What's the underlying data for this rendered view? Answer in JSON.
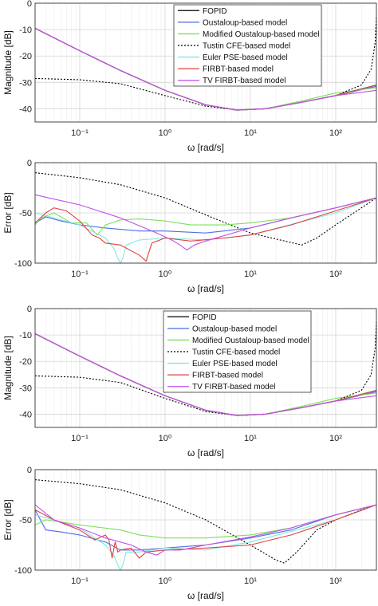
{
  "series_styles": [
    {
      "key": "fopid",
      "name": "FOPID",
      "color": "#000000",
      "dash": ""
    },
    {
      "key": "oust",
      "name": "Oustaloup-based model",
      "color": "#4d6fe0",
      "dash": ""
    },
    {
      "key": "modoust",
      "name": "Modified Oustaloup-based model",
      "color": "#7ee05a",
      "dash": ""
    },
    {
      "key": "tustin",
      "name": "Tustin CFE-based model",
      "color": "#000000",
      "dash": "2,2"
    },
    {
      "key": "euler",
      "name": "Euler PSE-based model",
      "color": "#7fe8e0",
      "dash": ""
    },
    {
      "key": "firbt",
      "name": "FIRBT-based model",
      "color": "#e04040",
      "dash": ""
    },
    {
      "key": "tvfirbt",
      "name": "TV FIRBT-based model",
      "color": "#c050e8",
      "dash": ""
    }
  ],
  "chart_data": [
    {
      "type": "line",
      "xscale": "log",
      "xlim": [
        0.03,
        300
      ],
      "ylim": [
        -45,
        0
      ],
      "yticks": [
        0,
        -10,
        -20,
        -30,
        -40
      ],
      "xticks": [
        0.1,
        1,
        10,
        100
      ],
      "xtick_labels": [
        "10⁻¹",
        "10⁰",
        "10¹",
        "10²"
      ],
      "xlabel": "ω [rad/s]",
      "ylabel": "Magnitude [dB]",
      "grid": true,
      "legend": "top-right",
      "series": [
        {
          "key": "fopid",
          "x": [
            0.03,
            0.1,
            0.3,
            1,
            3,
            7,
            15,
            40,
            100,
            300
          ],
          "y": [
            -9.5,
            -18,
            -25.5,
            -33,
            -38.5,
            -40.5,
            -40,
            -37.5,
            -35,
            -31
          ]
        },
        {
          "key": "oust",
          "x": [
            0.03,
            0.1,
            0.3,
            1,
            3,
            7,
            15,
            40,
            100,
            300
          ],
          "y": [
            -9.5,
            -18,
            -25.5,
            -33,
            -38.5,
            -40.5,
            -40,
            -37.5,
            -35,
            -31.5
          ]
        },
        {
          "key": "modoust",
          "x": [
            0.03,
            0.1,
            0.3,
            1,
            3,
            7,
            15,
            40,
            100,
            300
          ],
          "y": [
            -9.5,
            -18,
            -25.5,
            -33,
            -38.5,
            -40.5,
            -40,
            -37,
            -34,
            -32
          ]
        },
        {
          "key": "tustin",
          "x": [
            0.03,
            0.1,
            0.3,
            1,
            3,
            7,
            15,
            40,
            100,
            200,
            260,
            290,
            300
          ],
          "y": [
            -28.5,
            -29,
            -30.5,
            -35,
            -39,
            -40.5,
            -40,
            -37.5,
            -35,
            -31,
            -25,
            -15,
            -5
          ]
        },
        {
          "key": "euler",
          "x": [
            0.03,
            0.1,
            0.3,
            1,
            3,
            7,
            15,
            40,
            100,
            300
          ],
          "y": [
            -9.5,
            -18,
            -25.5,
            -33,
            -38.5,
            -40.5,
            -40,
            -37.5,
            -35,
            -31
          ]
        },
        {
          "key": "firbt",
          "x": [
            0.03,
            0.1,
            0.3,
            1,
            3,
            7,
            15,
            40,
            100,
            300
          ],
          "y": [
            -9.5,
            -18,
            -25.5,
            -33,
            -38.5,
            -40.5,
            -40,
            -37.5,
            -35,
            -31
          ]
        },
        {
          "key": "tvfirbt",
          "x": [
            0.03,
            0.1,
            0.3,
            1,
            3,
            7,
            15,
            40,
            100,
            300
          ],
          "y": [
            -9.5,
            -18,
            -25.5,
            -33,
            -38.5,
            -40.5,
            -40,
            -37.5,
            -35,
            -33
          ]
        }
      ]
    },
    {
      "type": "line",
      "xscale": "log",
      "xlim": [
        0.03,
        300
      ],
      "ylim": [
        -100,
        0
      ],
      "yticks": [
        0,
        -50,
        -100
      ],
      "xticks": [
        0.1,
        1,
        10,
        100
      ],
      "xtick_labels": [
        "10⁻¹",
        "10⁰",
        "10¹",
        "10²"
      ],
      "xlabel": "ω [rad/s]",
      "ylabel": "Error [dB]",
      "grid": true,
      "legend": "none",
      "series": [
        {
          "key": "tustin",
          "x": [
            0.03,
            0.1,
            0.3,
            1,
            3,
            10,
            40,
            60,
            100,
            200,
            300
          ],
          "y": [
            -10,
            -15,
            -22,
            -35,
            -52,
            -70,
            -82,
            -75,
            -62,
            -45,
            -35
          ]
        },
        {
          "key": "oust",
          "x": [
            0.03,
            0.04,
            0.06,
            0.1,
            0.2,
            0.5,
            1,
            3,
            10,
            30,
            100,
            300
          ],
          "y": [
            -60,
            -54,
            -58,
            -62,
            -65,
            -68,
            -68,
            -70,
            -65,
            -55,
            -45,
            -35
          ]
        },
        {
          "key": "modoust",
          "x": [
            0.03,
            0.035,
            0.05,
            0.08,
            0.12,
            0.16,
            0.2,
            0.3,
            0.5,
            1,
            2,
            5,
            10,
            30,
            100,
            300
          ],
          "y": [
            -62,
            -55,
            -50,
            -60,
            -60,
            -72,
            -62,
            -57,
            -56,
            -58,
            -62,
            -62,
            -60,
            -55,
            -45,
            -35
          ]
        },
        {
          "key": "euler",
          "x": [
            0.03,
            0.05,
            0.1,
            0.2,
            0.25,
            0.28,
            0.3,
            0.32,
            0.35,
            0.5,
            1,
            3,
            10,
            100,
            300
          ],
          "y": [
            -50,
            -55,
            -62,
            -75,
            -85,
            -95,
            -100,
            -95,
            -82,
            -77,
            -75,
            -77,
            -72,
            -50,
            -35
          ]
        },
        {
          "key": "firbt",
          "x": [
            0.03,
            0.04,
            0.05,
            0.07,
            0.1,
            0.14,
            0.17,
            0.2,
            0.3,
            0.5,
            0.6,
            0.7,
            1,
            2,
            5,
            10,
            30,
            100,
            300
          ],
          "y": [
            -60,
            -50,
            -45,
            -48,
            -58,
            -72,
            -75,
            -80,
            -82,
            -92,
            -98,
            -80,
            -75,
            -78,
            -75,
            -72,
            -62,
            -48,
            -35
          ]
        },
        {
          "key": "tvfirbt",
          "x": [
            0.03,
            0.1,
            0.3,
            0.8,
            1.2,
            1.5,
            1.8,
            2.2,
            3,
            10,
            30,
            100,
            300
          ],
          "y": [
            -32,
            -42,
            -55,
            -70,
            -77,
            -82,
            -87,
            -82,
            -78,
            -65,
            -55,
            -45,
            -35
          ]
        }
      ]
    },
    {
      "type": "line",
      "xscale": "log",
      "xlim": [
        0.03,
        300
      ],
      "ylim": [
        -45,
        0
      ],
      "yticks": [
        0,
        -10,
        -20,
        -30,
        -40
      ],
      "xticks": [
        0.1,
        1,
        10,
        100
      ],
      "xtick_labels": [
        "10⁻¹",
        "10⁰",
        "10¹",
        "10²"
      ],
      "xlabel": "ω [rad/s]",
      "ylabel": "Magnitude [dB]",
      "grid": true,
      "legend": "top-center",
      "series": [
        {
          "key": "fopid",
          "x": [
            0.03,
            0.1,
            0.3,
            1,
            3,
            7,
            15,
            40,
            100,
            300
          ],
          "y": [
            -9.5,
            -18,
            -25.5,
            -33,
            -38.5,
            -40.5,
            -40,
            -37.5,
            -35,
            -31
          ]
        },
        {
          "key": "oust",
          "x": [
            0.03,
            0.1,
            0.3,
            1,
            3,
            7,
            15,
            40,
            100,
            300
          ],
          "y": [
            -9.5,
            -18,
            -25.5,
            -33,
            -38.5,
            -40.5,
            -40,
            -37.5,
            -35,
            -31.5
          ]
        },
        {
          "key": "modoust",
          "x": [
            0.03,
            0.1,
            0.3,
            1,
            3,
            7,
            15,
            40,
            100,
            300
          ],
          "y": [
            -9.5,
            -18,
            -25.5,
            -33,
            -38.5,
            -40.5,
            -40,
            -37,
            -34,
            -32
          ]
        },
        {
          "key": "tustin",
          "x": [
            0.03,
            0.1,
            0.3,
            1,
            3,
            7,
            15,
            40,
            100,
            200,
            260,
            290,
            300
          ],
          "y": [
            -25.5,
            -26,
            -28,
            -34,
            -39,
            -40.5,
            -40,
            -37.5,
            -35,
            -31,
            -25,
            -15,
            -5
          ]
        },
        {
          "key": "euler",
          "x": [
            0.03,
            0.1,
            0.3,
            1,
            3,
            7,
            15,
            40,
            100,
            300
          ],
          "y": [
            -9.5,
            -18,
            -25.5,
            -33,
            -38.5,
            -40.5,
            -40,
            -37.5,
            -35,
            -31
          ]
        },
        {
          "key": "firbt",
          "x": [
            0.03,
            0.1,
            0.3,
            1,
            3,
            7,
            15,
            40,
            100,
            300
          ],
          "y": [
            -9.5,
            -18,
            -25.5,
            -33,
            -38.5,
            -40.5,
            -40,
            -37.5,
            -35,
            -31
          ]
        },
        {
          "key": "tvfirbt",
          "x": [
            0.03,
            0.1,
            0.3,
            1,
            3,
            7,
            15,
            40,
            100,
            300
          ],
          "y": [
            -9.5,
            -18,
            -25.5,
            -33,
            -38.5,
            -40.5,
            -40,
            -37.5,
            -35,
            -33
          ]
        }
      ]
    },
    {
      "type": "line",
      "xscale": "log",
      "xlim": [
        0.03,
        300
      ],
      "ylim": [
        -100,
        0
      ],
      "yticks": [
        0,
        -50,
        -100
      ],
      "xticks": [
        0.1,
        1,
        10,
        100
      ],
      "xtick_labels": [
        "10⁻¹",
        "10⁰",
        "10¹",
        "10²"
      ],
      "xlabel": "ω [rad/s]",
      "ylabel": "Error [dB]",
      "grid": true,
      "legend": "none",
      "series": [
        {
          "key": "tustin",
          "x": [
            0.03,
            0.1,
            0.3,
            1,
            3,
            10,
            20,
            25,
            35,
            60,
            100,
            200,
            300
          ],
          "y": [
            -10,
            -14,
            -20,
            -33,
            -50,
            -75,
            -90,
            -93,
            -82,
            -60,
            -50,
            -40,
            -35
          ]
        },
        {
          "key": "oust",
          "x": [
            0.03,
            0.04,
            0.06,
            0.1,
            0.2,
            0.3,
            0.5,
            1,
            3,
            10,
            30,
            100,
            300
          ],
          "y": [
            -40,
            -60,
            -62,
            -65,
            -72,
            -80,
            -80,
            -78,
            -75,
            -68,
            -60,
            -45,
            -35
          ]
        },
        {
          "key": "modoust",
          "x": [
            0.03,
            0.04,
            0.06,
            0.1,
            0.3,
            0.5,
            1,
            3,
            10,
            30,
            100,
            300
          ],
          "y": [
            -55,
            -50,
            -52,
            -55,
            -60,
            -65,
            -68,
            -68,
            -65,
            -58,
            -45,
            -35
          ]
        },
        {
          "key": "euler",
          "x": [
            0.03,
            0.05,
            0.1,
            0.2,
            0.25,
            0.28,
            0.3,
            0.32,
            0.35,
            0.5,
            1,
            3,
            10,
            100,
            300
          ],
          "y": [
            -45,
            -50,
            -58,
            -75,
            -85,
            -95,
            -100,
            -95,
            -82,
            -82,
            -78,
            -80,
            -72,
            -50,
            -35
          ]
        },
        {
          "key": "firbt",
          "x": [
            0.03,
            0.05,
            0.1,
            0.15,
            0.2,
            0.22,
            0.24,
            0.26,
            0.28,
            0.3,
            0.4,
            0.5,
            0.6,
            1,
            3,
            10,
            30,
            100,
            300
          ],
          "y": [
            -40,
            -50,
            -60,
            -70,
            -65,
            -70,
            -88,
            -72,
            -82,
            -80,
            -78,
            -88,
            -82,
            -80,
            -78,
            -75,
            -65,
            -50,
            -35
          ]
        },
        {
          "key": "tvfirbt",
          "x": [
            0.03,
            0.05,
            0.1,
            0.2,
            0.4,
            0.6,
            0.8,
            1,
            1.5,
            2,
            3,
            10,
            30,
            100,
            300
          ],
          "y": [
            -35,
            -50,
            -58,
            -68,
            -75,
            -82,
            -85,
            -80,
            -80,
            -78,
            -75,
            -67,
            -58,
            -45,
            -35
          ]
        }
      ]
    }
  ]
}
